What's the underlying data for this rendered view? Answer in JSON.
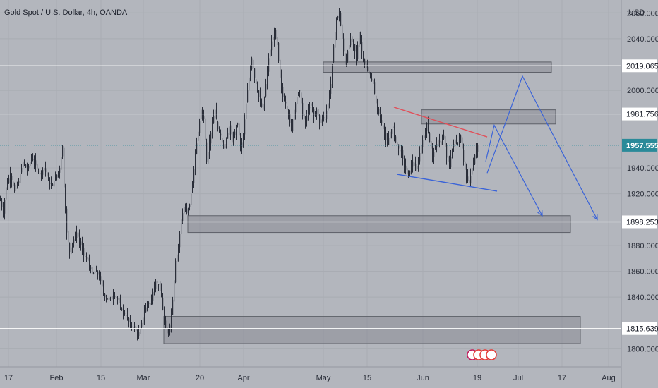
{
  "header": {
    "title": "Gold Spot / U.S. Dollar, 4h, OANDA",
    "currency": "USD"
  },
  "colors": {
    "background": "#b3b6bd",
    "candle": "#2a2e39",
    "level_line": "#ffffff",
    "zone_fill": "#8a8d95",
    "zone_stroke": "#5d6068",
    "resistance_trendline": "#e0505a",
    "support_trendline": "#3a63d8",
    "projection": "#3a63d8",
    "price_tag": "#2a8a99"
  },
  "chart_data": {
    "type": "candlestick",
    "symbol": "Gold Spot / U.S. Dollar",
    "interval": "4h",
    "source": "OANDA",
    "ylim": [
      1786,
      2070
    ],
    "xlim": [
      0,
      874
    ],
    "y_ticks": [
      "2060.000",
      "2040.000",
      "2000.000",
      "1940.000",
      "1920.000",
      "1880.000",
      "1860.000",
      "1840.000",
      "1800.000"
    ],
    "x_ticks": [
      {
        "label": "17",
        "x": 12
      },
      {
        "label": "Feb",
        "x": 80
      },
      {
        "label": "15",
        "x": 143
      },
      {
        "label": "Mar",
        "x": 203
      },
      {
        "label": "20",
        "x": 283
      },
      {
        "label": "Apr",
        "x": 345
      },
      {
        "label": "May",
        "x": 458
      },
      {
        "label": "15",
        "x": 520
      },
      {
        "label": "Jun",
        "x": 599
      },
      {
        "label": "19",
        "x": 676
      },
      {
        "label": "Jul",
        "x": 734
      },
      {
        "label": "17",
        "x": 796
      },
      {
        "label": "Aug",
        "x": 862
      }
    ],
    "price_path": [
      [
        0,
        1915
      ],
      [
        4,
        1905
      ],
      [
        8,
        1925
      ],
      [
        14,
        1935
      ],
      [
        20,
        1922
      ],
      [
        26,
        1930
      ],
      [
        32,
        1945
      ],
      [
        38,
        1938
      ],
      [
        44,
        1948
      ],
      [
        50,
        1942
      ],
      [
        56,
        1935
      ],
      [
        62,
        1940
      ],
      [
        68,
        1930
      ],
      [
        72,
        1925
      ],
      [
        78,
        1932
      ],
      [
        84,
        1940
      ],
      [
        88,
        1957
      ],
      [
        90,
        1925
      ],
      [
        94,
        1890
      ],
      [
        98,
        1875
      ],
      [
        102,
        1882
      ],
      [
        108,
        1890
      ],
      [
        114,
        1880
      ],
      [
        118,
        1872
      ],
      [
        124,
        1868
      ],
      [
        130,
        1858
      ],
      [
        136,
        1860
      ],
      [
        142,
        1852
      ],
      [
        148,
        1840
      ],
      [
        154,
        1838
      ],
      [
        160,
        1842
      ],
      [
        166,
        1838
      ],
      [
        172,
        1830
      ],
      [
        178,
        1826
      ],
      [
        184,
        1818
      ],
      [
        190,
        1816
      ],
      [
        196,
        1810
      ],
      [
        200,
        1820
      ],
      [
        204,
        1828
      ],
      [
        208,
        1836
      ],
      [
        212,
        1834
      ],
      [
        216,
        1844
      ],
      [
        220,
        1852
      ],
      [
        224,
        1850
      ],
      [
        228,
        1840
      ],
      [
        232,
        1820
      ],
      [
        236,
        1812
      ],
      [
        240,
        1818
      ],
      [
        244,
        1838
      ],
      [
        248,
        1868
      ],
      [
        252,
        1878
      ],
      [
        256,
        1900
      ],
      [
        260,
        1910
      ],
      [
        264,
        1905
      ],
      [
        268,
        1912
      ],
      [
        272,
        1928
      ],
      [
        276,
        1950
      ],
      [
        280,
        1968
      ],
      [
        284,
        1985
      ],
      [
        288,
        1978
      ],
      [
        292,
        1945
      ],
      [
        296,
        1960
      ],
      [
        300,
        1975
      ],
      [
        304,
        1985
      ],
      [
        308,
        1970
      ],
      [
        312,
        1965
      ],
      [
        316,
        1955
      ],
      [
        320,
        1962
      ],
      [
        324,
        1972
      ],
      [
        328,
        1960
      ],
      [
        332,
        1968
      ],
      [
        336,
        1975
      ],
      [
        340,
        1955
      ],
      [
        344,
        1965
      ],
      [
        348,
        1990
      ],
      [
        352,
        2010
      ],
      [
        356,
        2025
      ],
      [
        360,
        2010
      ],
      [
        364,
        2000
      ],
      [
        368,
        1990
      ],
      [
        372,
        1985
      ],
      [
        376,
        2005
      ],
      [
        380,
        2025
      ],
      [
        384,
        2038
      ],
      [
        388,
        2045
      ],
      [
        392,
        2035
      ],
      [
        396,
        2010
      ],
      [
        400,
        1995
      ],
      [
        404,
        1990
      ],
      [
        408,
        1980
      ],
      [
        412,
        1970
      ],
      [
        416,
        1985
      ],
      [
        420,
        1995
      ],
      [
        424,
        2000
      ],
      [
        428,
        1980
      ],
      [
        432,
        1975
      ],
      [
        436,
        1985
      ],
      [
        440,
        1990
      ],
      [
        444,
        1980
      ],
      [
        448,
        1985
      ],
      [
        452,
        1975
      ],
      [
        456,
        1980
      ],
      [
        460,
        1978
      ],
      [
        464,
        1990
      ],
      [
        468,
        2005
      ],
      [
        472,
        2035
      ],
      [
        476,
        2055
      ],
      [
        480,
        2060
      ],
      [
        484,
        2040
      ],
      [
        488,
        2020
      ],
      [
        492,
        2030
      ],
      [
        496,
        2040
      ],
      [
        500,
        2035
      ],
      [
        504,
        2025
      ],
      [
        508,
        2045
      ],
      [
        512,
        2030
      ],
      [
        516,
        2020
      ],
      [
        520,
        2015
      ],
      [
        524,
        2010
      ],
      [
        528,
        2005
      ],
      [
        532,
        1990
      ],
      [
        536,
        1982
      ],
      [
        540,
        1975
      ],
      [
        544,
        1965
      ],
      [
        548,
        1958
      ],
      [
        552,
        1968
      ],
      [
        556,
        1972
      ],
      [
        560,
        1960
      ],
      [
        564,
        1955
      ],
      [
        568,
        1952
      ],
      [
        572,
        1942
      ],
      [
        576,
        1935
      ],
      [
        580,
        1938
      ],
      [
        584,
        1945
      ],
      [
        588,
        1938
      ],
      [
        592,
        1945
      ],
      [
        596,
        1958
      ],
      [
        600,
        1965
      ],
      [
        604,
        1975
      ],
      [
        608,
        1960
      ],
      [
        612,
        1950
      ],
      [
        616,
        1955
      ],
      [
        620,
        1962
      ],
      [
        624,
        1958
      ],
      [
        628,
        1965
      ],
      [
        632,
        1948
      ],
      [
        636,
        1942
      ],
      [
        640,
        1955
      ],
      [
        644,
        1962
      ],
      [
        648,
        1958
      ],
      [
        652,
        1965
      ],
      [
        656,
        1945
      ],
      [
        660,
        1932
      ],
      [
        664,
        1928
      ],
      [
        668,
        1940
      ],
      [
        672,
        1950
      ],
      [
        676,
        1958
      ]
    ],
    "levels": [
      {
        "label": "2019.065",
        "value": 2019.065
      },
      {
        "label": "1981.756",
        "value": 1981.756
      },
      {
        "label": "1898.253",
        "value": 1898.253
      },
      {
        "label": "1815.639",
        "value": 1815.639
      }
    ],
    "current_price": {
      "label": "1957.555",
      "value": 1957.555
    },
    "zones": [
      {
        "x0": 458,
        "x1": 781,
        "y_top": 2022,
        "y_bottom": 2014
      },
      {
        "x0": 597,
        "x1": 787,
        "y_top": 1985,
        "y_bottom": 1974
      },
      {
        "x0": 266,
        "x1": 808,
        "y_top": 1903,
        "y_bottom": 1890
      },
      {
        "x0": 232,
        "x1": 822,
        "y_top": 1825,
        "y_bottom": 1804
      }
    ],
    "trendlines": [
      {
        "kind": "resistance",
        "points": [
          [
            558,
            1987
          ],
          [
            690,
            1964
          ]
        ]
      },
      {
        "kind": "support",
        "points": [
          [
            563,
            1935
          ],
          [
            704,
            1922
          ]
        ]
      }
    ],
    "projections": [
      {
        "points": [
          [
            688,
            1945
          ],
          [
            700,
            1973
          ],
          [
            768,
            1903
          ]
        ]
      },
      {
        "points": [
          [
            690,
            1936
          ],
          [
            740,
            2011
          ],
          [
            846,
            1900
          ]
        ]
      }
    ]
  }
}
